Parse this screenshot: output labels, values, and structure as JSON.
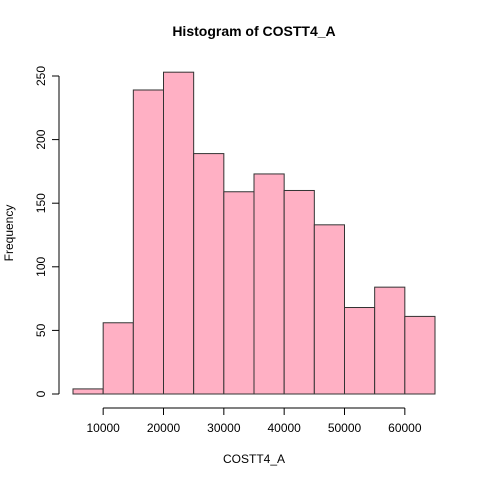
{
  "chart_data": {
    "type": "bar",
    "title": "Histogram of COSTT4_A",
    "xlabel": "COSTT4_A",
    "ylabel": "Frequency",
    "bin_edges": [
      5000,
      10000,
      15000,
      20000,
      25000,
      30000,
      35000,
      40000,
      45000,
      50000,
      55000,
      60000,
      65000
    ],
    "values": [
      4,
      56,
      239,
      253,
      189,
      159,
      173,
      160,
      133,
      68,
      84,
      61
    ],
    "x_ticks": [
      10000,
      20000,
      30000,
      40000,
      50000,
      60000
    ],
    "y_ticks": [
      0,
      50,
      100,
      150,
      200,
      250
    ],
    "xlim": [
      5000,
      65000
    ],
    "ylim": [
      0,
      250
    ],
    "bar_color": "#ffb0c4",
    "grid": false,
    "legend": "none"
  }
}
